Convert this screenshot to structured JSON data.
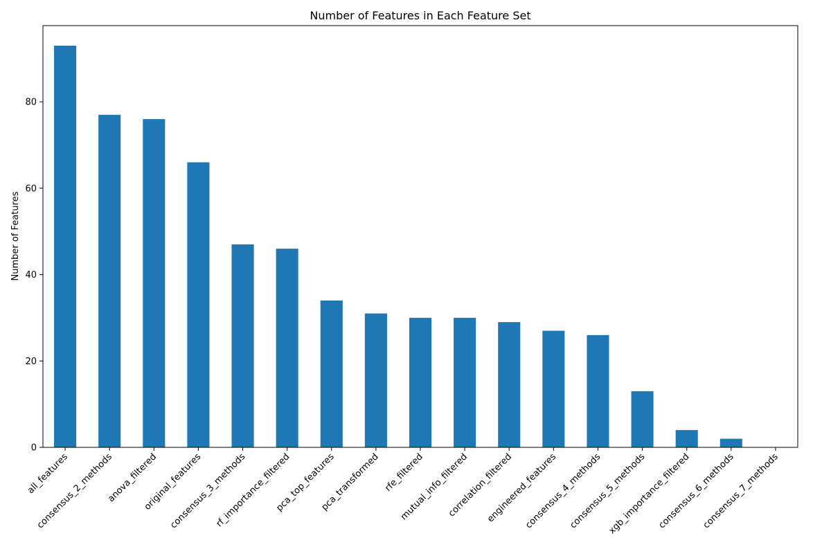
{
  "chart_data": {
    "type": "bar",
    "title": "Number of Features in Each Feature Set",
    "xlabel": "",
    "ylabel": "Number of Features",
    "categories": [
      "all_features",
      "consensus_2_methods",
      "anova_filtered",
      "original_features",
      "consensus_3_methods",
      "rf_importance_filtered",
      "pca_top_features",
      "pca_transformed",
      "rfe_filtered",
      "mutual_info_filtered",
      "correlation_filtered",
      "engineered_features",
      "consensus_4_methods",
      "consensus_5_methods",
      "xgb_importance_filtered",
      "consensus_6_methods",
      "consensus_7_methods"
    ],
    "values": [
      93,
      77,
      76,
      66,
      47,
      46,
      34,
      31,
      30,
      30,
      29,
      27,
      26,
      13,
      4,
      2,
      0
    ],
    "ylim": [
      0,
      97.65
    ],
    "yticks": [
      0,
      20,
      40,
      60,
      80
    ],
    "bar_color": "#1f77b4",
    "grid": false,
    "legend": "none"
  }
}
